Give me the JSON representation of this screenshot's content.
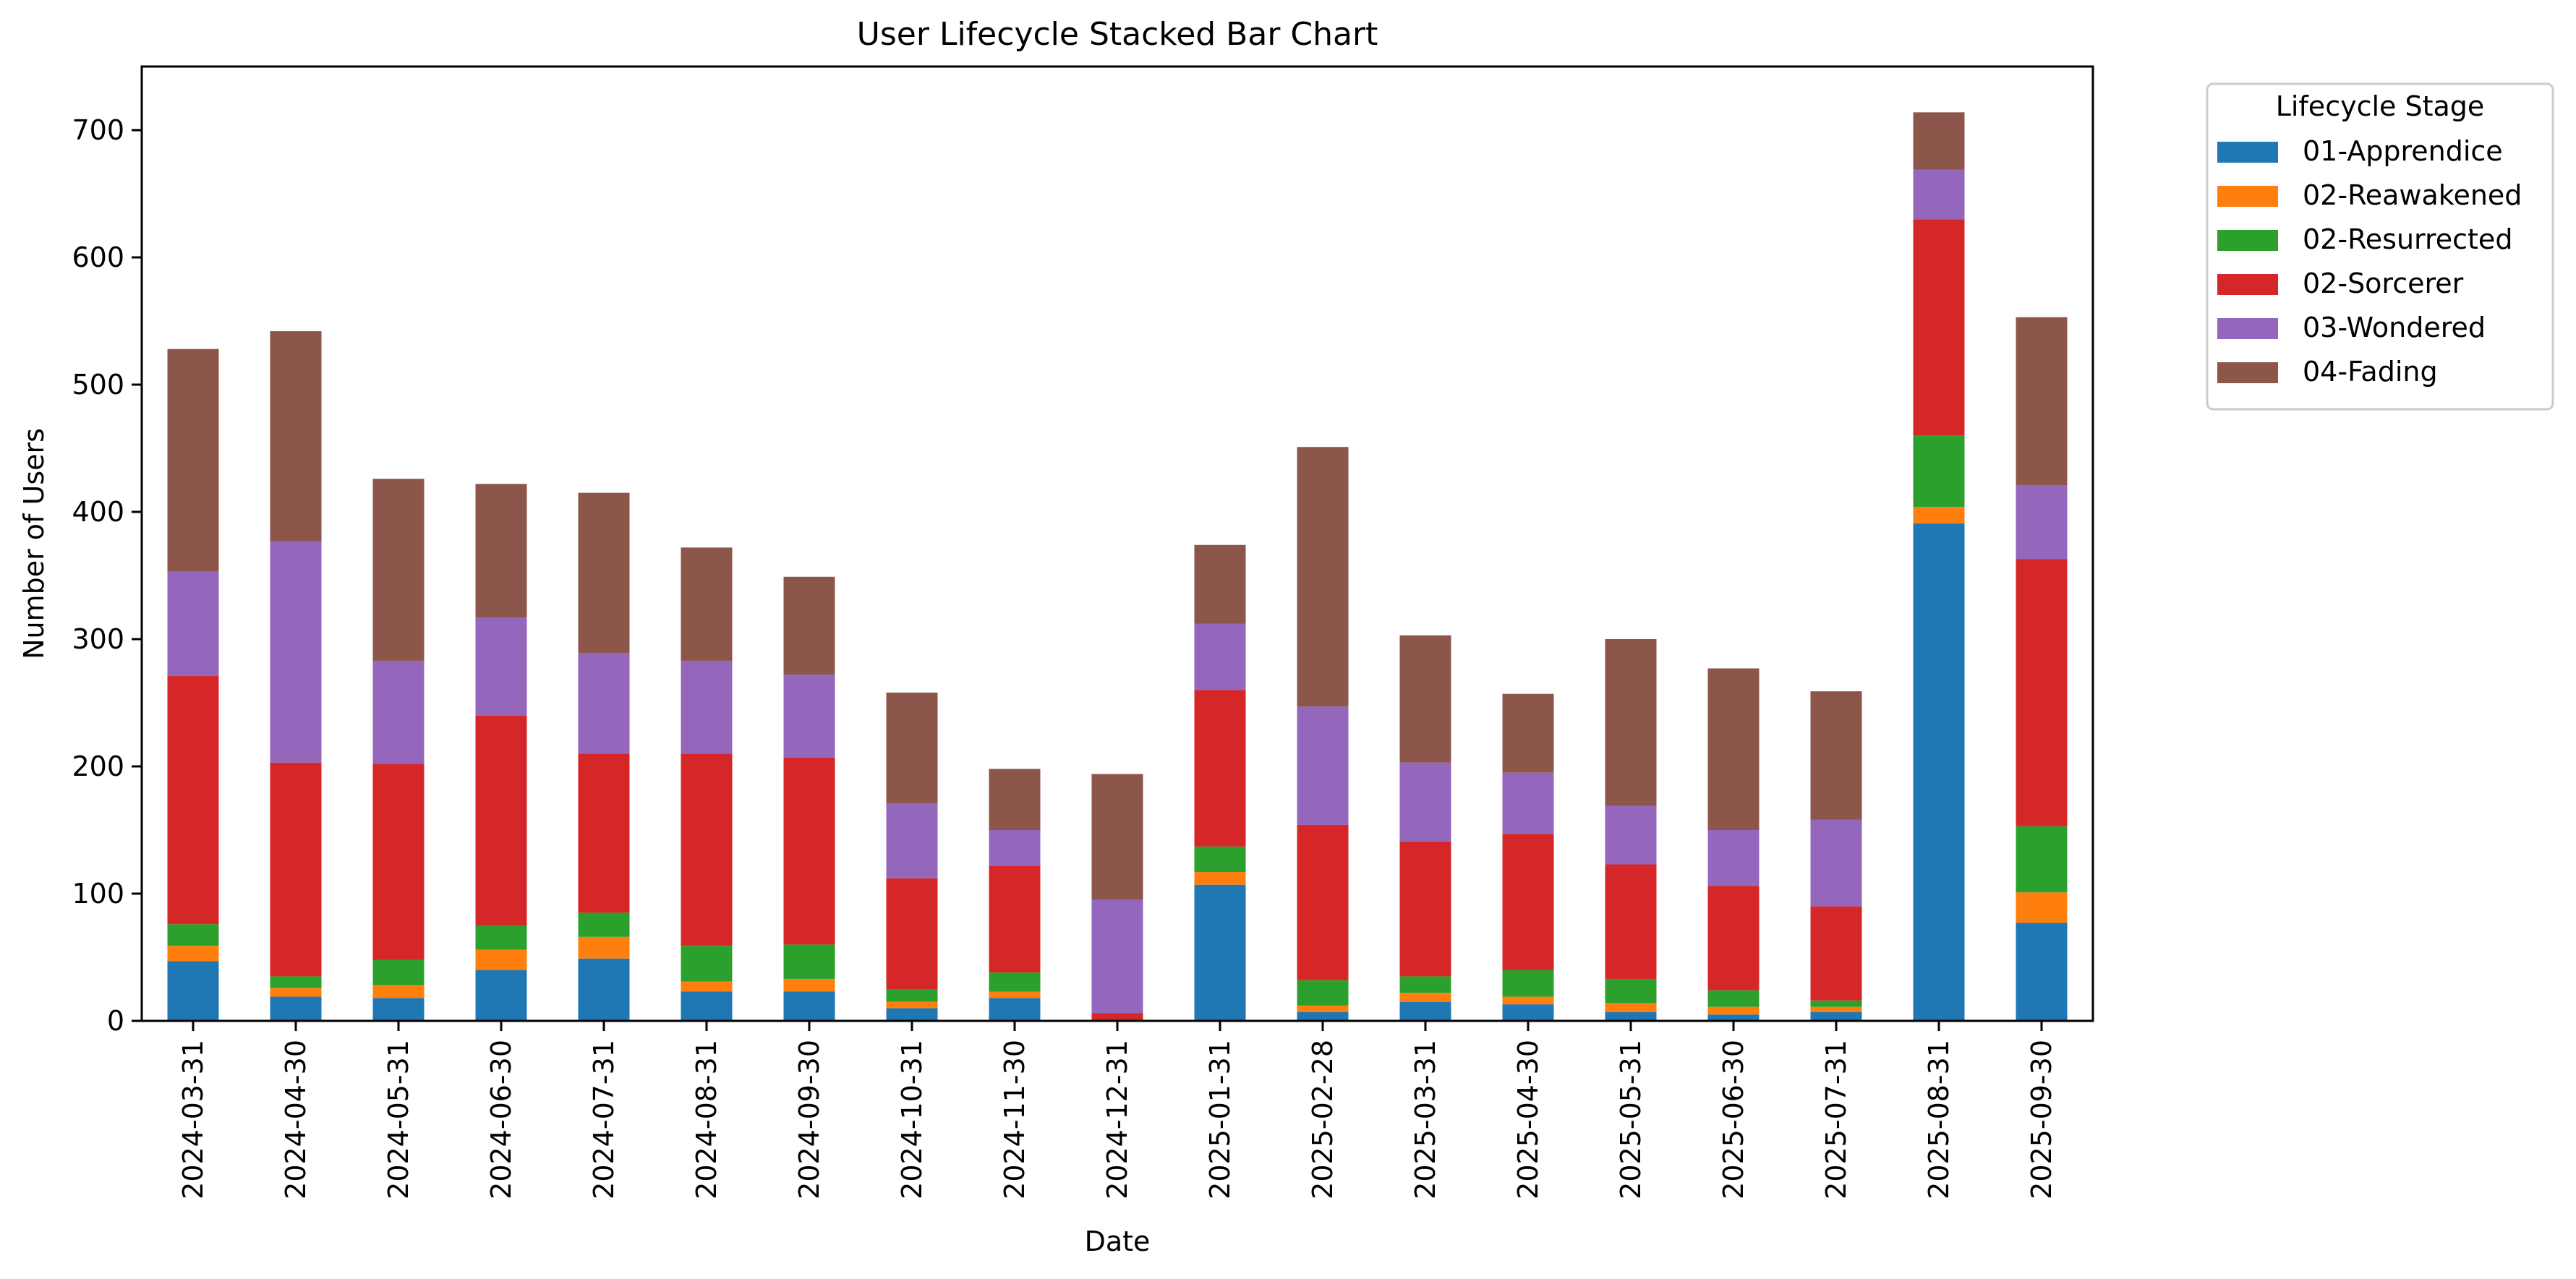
{
  "chart_data": {
    "type": "bar",
    "stacked": true,
    "title": "User Lifecycle Stacked Bar Chart",
    "xlabel": "Date",
    "ylabel": "Number of Users",
    "ylim": [
      0,
      750
    ],
    "yticks": [
      0,
      100,
      200,
      300,
      400,
      500,
      600,
      700
    ],
    "grid": false,
    "legend": {
      "title": "Lifecycle Stage",
      "placement": "outside-right-top"
    },
    "categories": [
      "2024-03-31",
      "2024-04-30",
      "2024-05-31",
      "2024-06-30",
      "2024-07-31",
      "2024-08-31",
      "2024-09-30",
      "2024-10-31",
      "2024-11-30",
      "2024-12-31",
      "2025-01-31",
      "2025-02-28",
      "2025-03-31",
      "2025-04-30",
      "2025-05-31",
      "2025-06-30",
      "2025-07-31",
      "2025-08-31",
      "2025-09-30"
    ],
    "series": [
      {
        "name": "01-Apprendice",
        "color": "#1f77b4",
        "values": [
          47,
          19,
          18,
          40,
          49,
          23,
          23,
          10,
          18,
          0,
          107,
          7,
          15,
          13,
          7,
          5,
          7,
          391,
          77
        ]
      },
      {
        "name": "02-Reawakened",
        "color": "#ff7f0e",
        "values": [
          12,
          7,
          10,
          16,
          17,
          8,
          10,
          5,
          5,
          0,
          10,
          5,
          7,
          6,
          7,
          6,
          4,
          13,
          24
        ]
      },
      {
        "name": "02-Resurrected",
        "color": "#2ca02c",
        "values": [
          17,
          9,
          20,
          19,
          19,
          28,
          27,
          10,
          15,
          0,
          20,
          20,
          13,
          21,
          19,
          13,
          5,
          56,
          52
        ]
      },
      {
        "name": "02-Sorcerer",
        "color": "#d62728",
        "values": [
          195,
          168,
          154,
          165,
          125,
          151,
          147,
          87,
          84,
          6,
          123,
          122,
          106,
          107,
          90,
          82,
          74,
          170,
          210
        ]
      },
      {
        "name": "03-Wondered",
        "color": "#9467bd",
        "values": [
          82,
          174,
          81,
          77,
          79,
          73,
          65,
          59,
          28,
          89,
          52,
          93,
          62,
          48,
          46,
          44,
          68,
          39,
          58
        ]
      },
      {
        "name": "04-Fading",
        "color": "#8c564b",
        "values": [
          175,
          165,
          143,
          105,
          126,
          89,
          77,
          87,
          48,
          99,
          62,
          204,
          100,
          62,
          131,
          127,
          101,
          45,
          132
        ]
      }
    ]
  }
}
